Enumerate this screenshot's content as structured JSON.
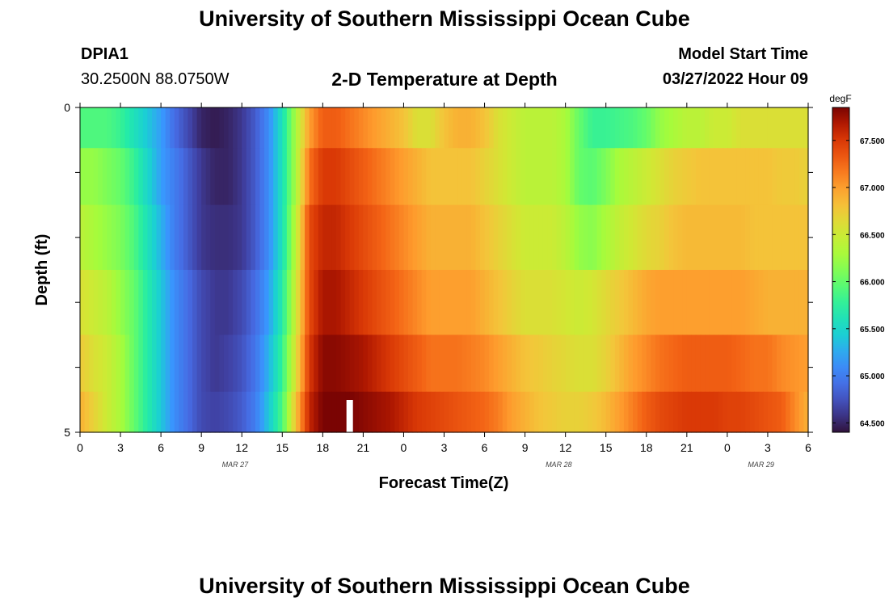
{
  "page": {
    "title": "University of Southern Mississippi Ocean Cube",
    "footer_title": "University of Southern Mississippi Ocean Cube",
    "station_id": "DPIA1",
    "station_coords": "30.2500N  88.0750W",
    "model_start_label": "Model Start Time",
    "model_start_value": "03/27/2022 Hour 09"
  },
  "chart_data": {
    "type": "heatmap",
    "title": "2-D Temperature at Depth",
    "xlabel": "Forecast Time(Z)",
    "ylabel": "Depth (ft)",
    "unit": "degF",
    "x_tick_labels": [
      "0",
      "3",
      "6",
      "9",
      "12",
      "15",
      "18",
      "21",
      "0",
      "3",
      "6",
      "9",
      "12",
      "15",
      "18",
      "21",
      "0",
      "3",
      "6"
    ],
    "x_hours": [
      0,
      3,
      6,
      9,
      12,
      15,
      18,
      21,
      24,
      27,
      30,
      33,
      36,
      39,
      42,
      45,
      48,
      51,
      54
    ],
    "date_labels": [
      {
        "text": "MAR 27",
        "hour": 11.5
      },
      {
        "text": "MAR 28",
        "hour": 35.5
      },
      {
        "text": "MAR 29",
        "hour": 50.5
      }
    ],
    "y_tick_labels": [
      "0",
      "5"
    ],
    "ylim": [
      0,
      5
    ],
    "depth_rows": [
      0.25,
      1.0,
      2.0,
      3.0,
      4.0,
      4.75
    ],
    "colorbar": {
      "min": 64.4,
      "max": 67.85,
      "tick_values": [
        64.5,
        65.0,
        65.5,
        66.0,
        66.5,
        67.0,
        67.5
      ],
      "tick_labels": [
        "64.500",
        "65.000",
        "65.500",
        "66.000",
        "66.500",
        "67.000",
        "67.500"
      ]
    },
    "marker_hour": 20,
    "hours": [
      0,
      1,
      2,
      3,
      4,
      5,
      6,
      7,
      8,
      9,
      10,
      11,
      12,
      13,
      14,
      15,
      16,
      17,
      18,
      19,
      20,
      21,
      22,
      23,
      24,
      25,
      26,
      27,
      28,
      29,
      30,
      31,
      32,
      33,
      34,
      35,
      36,
      37,
      38,
      39,
      40,
      41,
      42,
      43,
      44,
      45,
      46,
      47,
      48,
      49,
      50,
      51,
      52,
      53,
      54
    ],
    "values": [
      [
        65.9,
        65.9,
        65.9,
        65.8,
        65.6,
        65.4,
        65.2,
        64.9,
        64.7,
        64.5,
        64.45,
        64.5,
        64.6,
        64.8,
        65.1,
        65.6,
        66.3,
        67.0,
        67.3,
        67.3,
        67.2,
        67.1,
        67.0,
        66.9,
        66.8,
        66.6,
        66.6,
        66.8,
        66.9,
        66.9,
        66.8,
        66.6,
        66.5,
        66.4,
        66.4,
        66.4,
        66.3,
        66.0,
        65.8,
        65.8,
        65.85,
        65.9,
        66.0,
        66.2,
        66.3,
        66.4,
        66.4,
        66.5,
        66.5,
        66.6,
        66.6,
        66.6,
        66.6,
        66.6,
        66.6
      ],
      [
        66.2,
        66.2,
        66.1,
        66.0,
        65.8,
        65.5,
        65.2,
        65.0,
        64.8,
        64.6,
        64.5,
        64.5,
        64.6,
        64.8,
        65.1,
        65.6,
        66.3,
        67.2,
        67.5,
        67.5,
        67.4,
        67.3,
        67.2,
        67.1,
        67.0,
        66.9,
        66.8,
        66.8,
        66.8,
        66.8,
        66.7,
        66.6,
        66.5,
        66.4,
        66.4,
        66.4,
        66.3,
        66.0,
        65.95,
        66.1,
        66.3,
        66.4,
        66.5,
        66.6,
        66.7,
        66.75,
        66.8,
        66.8,
        66.8,
        66.8,
        66.8,
        66.8,
        66.75,
        66.75,
        66.7
      ],
      [
        66.4,
        66.3,
        66.2,
        66.1,
        65.9,
        65.6,
        65.3,
        65.0,
        64.8,
        64.6,
        64.55,
        64.55,
        64.6,
        64.8,
        65.1,
        65.6,
        66.4,
        67.4,
        67.6,
        67.6,
        67.5,
        67.4,
        67.3,
        67.2,
        67.1,
        67.0,
        66.9,
        66.9,
        66.9,
        66.9,
        66.8,
        66.7,
        66.6,
        66.5,
        66.5,
        66.5,
        66.4,
        66.2,
        66.15,
        66.3,
        66.45,
        66.55,
        66.65,
        66.7,
        66.8,
        66.85,
        66.85,
        66.85,
        66.85,
        66.85,
        66.8,
        66.8,
        66.8,
        66.8,
        66.8
      ],
      [
        66.6,
        66.5,
        66.4,
        66.2,
        66.0,
        65.7,
        65.4,
        65.1,
        64.9,
        64.7,
        64.6,
        64.6,
        64.7,
        64.9,
        65.2,
        65.7,
        66.5,
        67.4,
        67.7,
        67.7,
        67.6,
        67.5,
        67.4,
        67.3,
        67.2,
        67.1,
        67.0,
        67.0,
        67.0,
        67.0,
        66.9,
        66.8,
        66.7,
        66.6,
        66.6,
        66.6,
        66.55,
        66.5,
        66.55,
        66.65,
        66.75,
        66.85,
        66.95,
        67.0,
        67.0,
        67.0,
        67.0,
        67.0,
        67.0,
        67.0,
        66.95,
        66.9,
        66.9,
        66.9,
        66.9
      ],
      [
        66.75,
        66.6,
        66.5,
        66.3,
        66.0,
        65.7,
        65.4,
        65.1,
        64.9,
        64.7,
        64.6,
        64.65,
        64.75,
        64.95,
        65.3,
        65.8,
        66.6,
        67.5,
        67.8,
        67.8,
        67.75,
        67.7,
        67.6,
        67.5,
        67.4,
        67.3,
        67.2,
        67.2,
        67.2,
        67.15,
        67.1,
        67.0,
        66.9,
        66.8,
        66.75,
        66.7,
        66.65,
        66.6,
        66.6,
        66.7,
        66.85,
        67.0,
        67.1,
        67.2,
        67.25,
        67.3,
        67.3,
        67.3,
        67.3,
        67.25,
        67.2,
        67.2,
        67.1,
        67.05,
        67.0
      ],
      [
        66.9,
        66.7,
        66.5,
        66.3,
        66.0,
        65.7,
        65.4,
        65.1,
        64.9,
        64.7,
        64.65,
        64.7,
        64.8,
        65.0,
        65.4,
        65.9,
        66.8,
        67.6,
        67.85,
        67.85,
        67.85,
        67.8,
        67.75,
        67.7,
        67.6,
        67.5,
        67.45,
        67.4,
        67.35,
        67.3,
        67.25,
        67.15,
        67.0,
        66.9,
        66.8,
        66.75,
        66.7,
        66.7,
        66.75,
        66.85,
        67.0,
        67.15,
        67.3,
        67.4,
        67.45,
        67.5,
        67.5,
        67.5,
        67.45,
        67.45,
        67.4,
        67.35,
        67.3,
        67.1,
        66.9
      ]
    ]
  }
}
